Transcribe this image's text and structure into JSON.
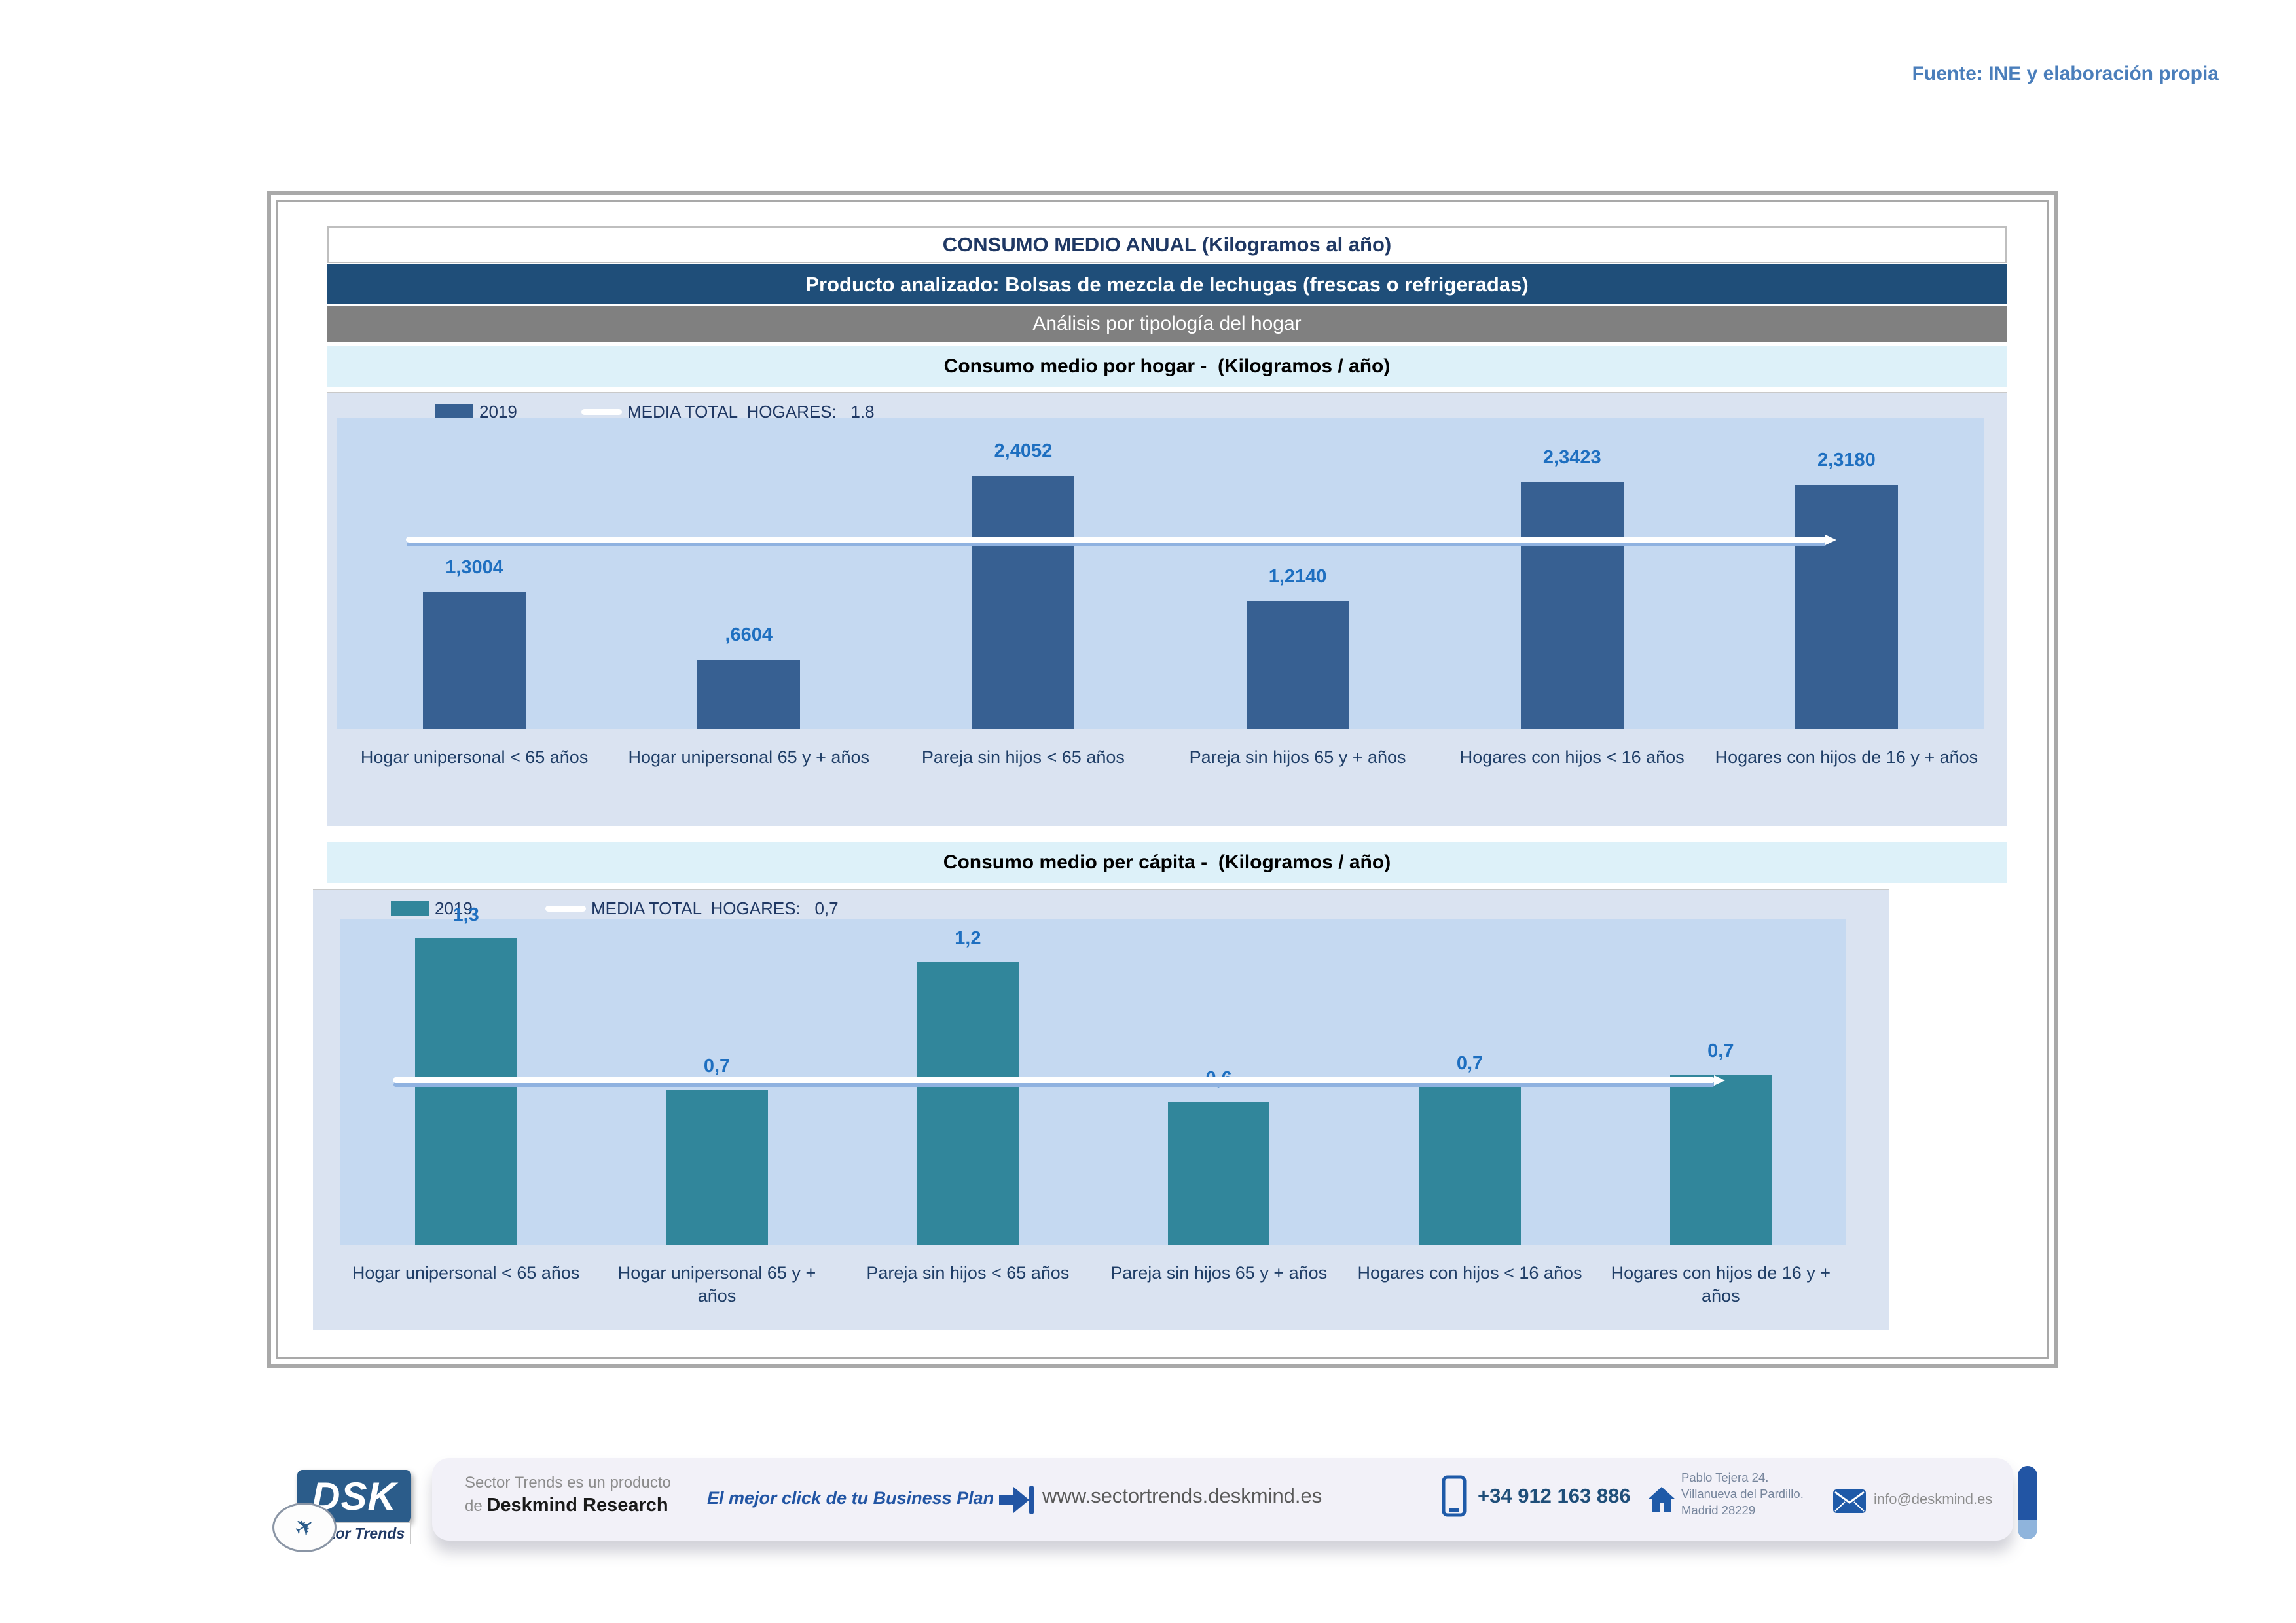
{
  "page": {
    "source_note": "Fuente: INE y elaboración propia"
  },
  "report": {
    "title": "CONSUMO MEDIO ANUAL (Kilogramos al año)",
    "subtitle_product": "Producto analizado: Bolsas de mezcla de lechugas (frescas o refrigeradas)",
    "subtitle_analysis": "Análisis por tipología del hogar"
  },
  "chart_data": [
    {
      "type": "bar",
      "title": "Consumo medio por hogar -  (Kilogramos / año)",
      "legend": {
        "series_label": "2019",
        "media_label": "MEDIA TOTAL  HOGARES:   1.8",
        "position": "top-left"
      },
      "categories": [
        "Hogar unipersonal < 65 años",
        "Hogar unipersonal  65 y + años",
        "Pareja sin hijos < 65 años",
        "Pareja sin hijos 65 y + años",
        "Hogares con hijos < 16 años",
        "Hogares con hijos de 16 y + años"
      ],
      "values": [
        1.3004,
        0.6604,
        2.4052,
        1.214,
        2.3423,
        2.318
      ],
      "value_labels": [
        "1,3004",
        ",6604",
        "2,4052",
        "1,2140",
        "2,3423",
        "2,3180"
      ],
      "media_total": 1.8,
      "ylabel": "Kilogramos / año",
      "ylim": [
        0,
        2.95
      ],
      "grid": false,
      "bar_color": "#376092",
      "media_line_color": "#FFFFFF"
    },
    {
      "type": "bar",
      "title": "Consumo medio per cápita -  (Kilogramos / año)",
      "legend": {
        "series_label": "2019",
        "media_label": "MEDIA TOTAL  HOGARES:   0,7",
        "position": "top-left"
      },
      "categories": [
        "Hogar unipersonal < 65 años",
        "Hogar unipersonal  65 y + años",
        "Pareja sin hijos < 65 años",
        "Pareja sin hijos 65 y + años",
        "Hogares con hijos < 16 años",
        "Hogares con hijos de 16 y + años"
      ],
      "values": [
        1.3004,
        0.6604,
        1.2026,
        0.607,
        0.6692,
        0.7244
      ],
      "value_labels": [
        "1,3",
        "0,7",
        "1,2",
        "0,6",
        "0,7",
        "0,7"
      ],
      "media_total": 0.7,
      "ylabel": "Kilogramos / año",
      "ylim": [
        0,
        1.385
      ],
      "grid": false,
      "bar_color": "#31869B",
      "media_line_color": "#FFFFFF"
    }
  ],
  "colors": {
    "accent_navy": "#1F4E79",
    "band_gray": "#808080",
    "band_cyan": "#DDF1F9",
    "chart_bg": "#DAE3F1",
    "plot_bg": "#C5D9F1",
    "bar_blue": "#376092",
    "bar_teal": "#31869B",
    "value_label_blue": "#1E6FC0",
    "category_label_navy": "#1F3E67",
    "media_line_white": "#FFFFFF",
    "source_note_blue": "#4A7EBB",
    "footer_blue": "#2255A4"
  },
  "footer": {
    "logo_text": "DSK",
    "logo_tagline": "Sector Trends",
    "product_line_1": "Sector Trends es un producto",
    "product_line_2_prefix": "de ",
    "product_line_2_bold": "Deskmind Research",
    "slogan": "El mejor click de tu Business Plan",
    "website": "www.sectortrends.deskmind.es",
    "phone": "+34 912 163 886",
    "address_line_1": "Pablo Tejera 24.",
    "address_line_2": "Villanueva del Pardillo.",
    "address_line_3": "Madrid 28229",
    "email": "info@deskmind.es"
  }
}
